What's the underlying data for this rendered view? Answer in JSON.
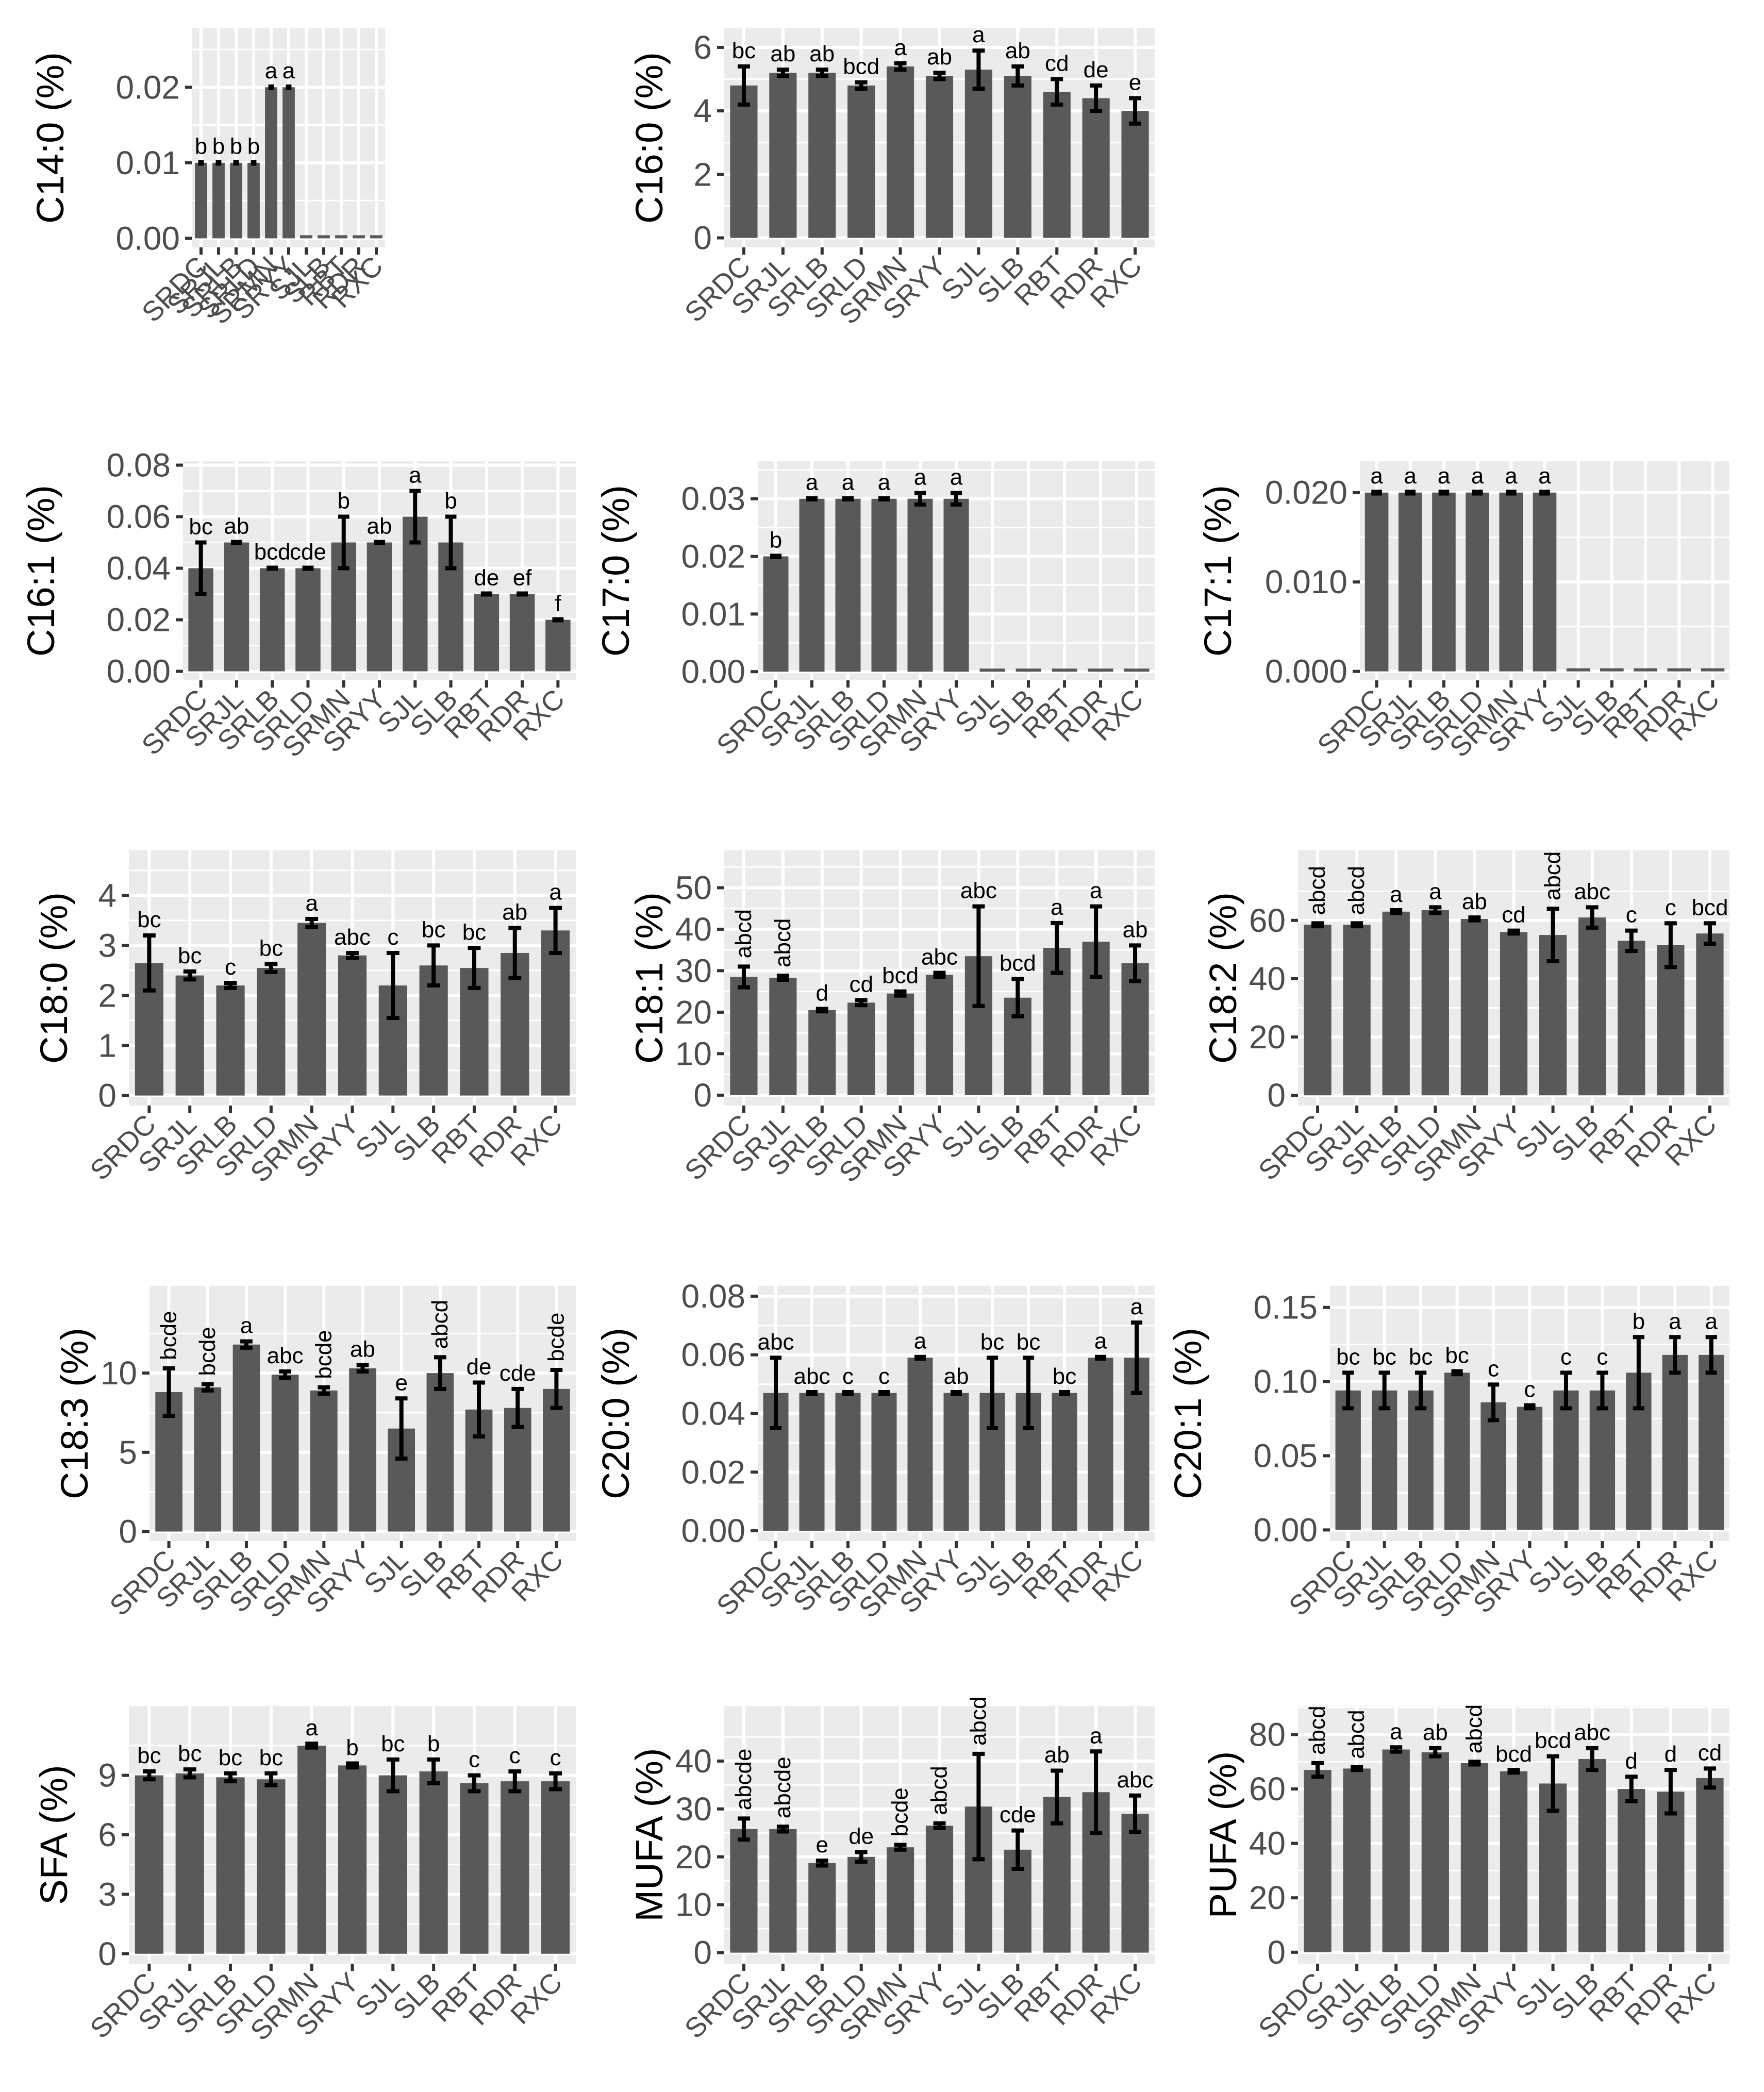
{
  "categories": [
    "SRDC",
    "SRJL",
    "SRLB",
    "SRLD",
    "SRMN",
    "SRYY",
    "SJL",
    "SLB",
    "RBT",
    "RDR",
    "RXC"
  ],
  "colors": {
    "panel_bg": "#EBEBEB",
    "grid": "#FFFFFF",
    "bar": "#595959",
    "error_bar": "#000000",
    "text": "#000000",
    "tick_text": "#4D4D4D"
  },
  "chart_data": [
    {
      "id": "c14_0",
      "type": "bar",
      "ylabel": "C14:0 (%)",
      "ylim": [
        -0.0012,
        0.0278
      ],
      "ticks": [
        0,
        0.01,
        0.02
      ],
      "tick_labels": [
        "0.00",
        "0.01",
        "0.02"
      ],
      "values": [
        0.01,
        0.01,
        0.01,
        0.01,
        0.02,
        0.02,
        0,
        0,
        0,
        0,
        0
      ],
      "errors": [
        0.0001,
        0.0001,
        0.0001,
        0.0001,
        0.0001,
        0.0001,
        0,
        0,
        0,
        0,
        0
      ],
      "letters": [
        "b",
        "b",
        "b",
        "b",
        "a",
        "a",
        "",
        "",
        "",
        "",
        ""
      ]
    },
    {
      "id": "c16_0",
      "type": "bar",
      "ylabel": "C16:0 (%)",
      "ylim": [
        -0.3,
        6.6
      ],
      "ticks": [
        0,
        2,
        4,
        6
      ],
      "tick_labels": [
        "0",
        "2",
        "4",
        "6"
      ],
      "values": [
        4.8,
        5.2,
        5.2,
        4.8,
        5.4,
        5.1,
        5.3,
        5.1,
        4.6,
        4.4,
        4.0
      ],
      "errors": [
        0.6,
        0.1,
        0.1,
        0.1,
        0.1,
        0.1,
        0.6,
        0.3,
        0.4,
        0.4,
        0.4
      ],
      "letters": [
        "bc",
        "ab",
        "ab",
        "bcd",
        "a",
        "ab",
        "a",
        "ab",
        "cd",
        "de",
        "e"
      ]
    },
    {
      "id": "c16_1",
      "type": "bar",
      "ylabel": "C16:1 (%)",
      "ylim": [
        -0.0035,
        0.0815
      ],
      "ticks": [
        0,
        0.02,
        0.04,
        0.06,
        0.08
      ],
      "tick_labels": [
        "0.00",
        "0.02",
        "0.04",
        "0.06",
        "0.08"
      ],
      "values": [
        0.04,
        0.05,
        0.04,
        0.04,
        0.05,
        0.05,
        0.06,
        0.05,
        0.03,
        0.03,
        0.02
      ],
      "errors": [
        0.01,
        0.0002,
        0.0002,
        0.0002,
        0.01,
        0.0002,
        0.01,
        0.01,
        0.0002,
        0.0002,
        0.0002
      ],
      "letters": [
        "bc",
        "ab",
        "bcd",
        "cde",
        "b",
        "ab",
        "a",
        "b",
        "de",
        "ef",
        "f"
      ]
    },
    {
      "id": "c17_0",
      "type": "bar",
      "ylabel": "C17:0 (%)",
      "ylim": [
        -0.0015,
        0.0365
      ],
      "ticks": [
        0,
        0.01,
        0.02,
        0.03
      ],
      "tick_labels": [
        "0.00",
        "0.01",
        "0.02",
        "0.03"
      ],
      "values": [
        0.02,
        0.03,
        0.03,
        0.03,
        0.03,
        0.03,
        0,
        0,
        0,
        0,
        0
      ],
      "errors": [
        0.0001,
        0.0001,
        0.0001,
        0.0001,
        0.001,
        0.001,
        0,
        0,
        0,
        0,
        0
      ],
      "letters": [
        "b",
        "a",
        "a",
        "a",
        "a",
        "a",
        "",
        "",
        "",
        "",
        ""
      ]
    },
    {
      "id": "c17_1",
      "type": "bar",
      "ylabel": "C17:1 (%)",
      "ylim": [
        -0.001,
        0.0235
      ],
      "ticks": [
        0,
        0.01,
        0.02
      ],
      "tick_labels": [
        "0.000",
        "0.010",
        "0.020"
      ],
      "values": [
        0.02,
        0.02,
        0.02,
        0.02,
        0.02,
        0.02,
        0,
        0,
        0,
        0,
        0
      ],
      "errors": [
        0.0001,
        0.0001,
        0.0001,
        0.0001,
        0.0001,
        0.0001,
        0,
        0,
        0,
        0,
        0
      ],
      "letters": [
        "a",
        "a",
        "a",
        "a",
        "a",
        "a",
        "",
        "",
        "",
        "",
        ""
      ]
    },
    {
      "id": "c18_0",
      "type": "bar",
      "ylabel": "C18:0 (%)",
      "ylim": [
        -0.2,
        4.9
      ],
      "ticks": [
        0,
        1,
        2,
        3,
        4
      ],
      "tick_labels": [
        "0",
        "1",
        "2",
        "3",
        "4"
      ],
      "values": [
        2.65,
        2.4,
        2.2,
        2.55,
        3.45,
        2.8,
        2.2,
        2.6,
        2.55,
        2.85,
        3.3
      ],
      "errors": [
        0.55,
        0.08,
        0.05,
        0.08,
        0.08,
        0.05,
        0.65,
        0.4,
        0.4,
        0.5,
        0.45
      ],
      "letters": [
        "bc",
        "bc",
        "c",
        "bc",
        "a",
        "abc",
        "c",
        "bc",
        "bc",
        "ab",
        "a"
      ]
    },
    {
      "id": "c18_1",
      "type": "bar",
      "ylabel": "C18:1 (%)",
      "ylim": [
        -2.5,
        59
      ],
      "ticks": [
        0,
        10,
        20,
        30,
        40,
        50
      ],
      "tick_labels": [
        "0",
        "10",
        "20",
        "30",
        "40",
        "50"
      ],
      "values": [
        28.5,
        28.3,
        20.5,
        22.3,
        24.5,
        29,
        33.5,
        23.5,
        35.5,
        37,
        31.8
      ],
      "errors": [
        2.5,
        0.5,
        0.3,
        0.6,
        0.5,
        0.5,
        12,
        4.5,
        6,
        8.5,
        4.3
      ],
      "letters": [
        "abcd",
        "abcd",
        "d",
        "cd",
        "bcd",
        "abc",
        "abc",
        "bcd",
        "a",
        "a",
        "ab"
      ]
    },
    {
      "id": "c18_2",
      "type": "bar",
      "ylabel": "C18:2 (%)",
      "ylim": [
        -3.5,
        84
      ],
      "ticks": [
        0,
        20,
        40,
        60
      ],
      "tick_labels": [
        "0",
        "20",
        "40",
        "60"
      ],
      "values": [
        58.5,
        58.5,
        63,
        63.5,
        60.5,
        56,
        55,
        61,
        53,
        51.5,
        55.5
      ],
      "errors": [
        0.5,
        0.5,
        0.5,
        1,
        0.5,
        0.5,
        9,
        3.5,
        3.5,
        7.5,
        3.5
      ],
      "letters": [
        "abcd",
        "abcd",
        "a",
        "a",
        "ab",
        "cd",
        "abcd",
        "abc",
        "c",
        "c",
        "bcd"
      ]
    },
    {
      "id": "c18_3",
      "type": "bar",
      "ylabel": "C18:3 (%)",
      "ylim": [
        -0.6,
        15.5
      ],
      "ticks": [
        0,
        5,
        10
      ],
      "tick_labels": [
        "0",
        "5",
        "10"
      ],
      "values": [
        8.8,
        9.1,
        11.8,
        9.9,
        8.9,
        10.3,
        6.5,
        10,
        7.7,
        7.8,
        9.0
      ],
      "errors": [
        1.5,
        0.2,
        0.2,
        0.2,
        0.2,
        0.2,
        1.9,
        1.0,
        1.7,
        1.2,
        1.2
      ],
      "letters": [
        "bcde",
        "bcde",
        "a",
        "abc",
        "bcde",
        "ab",
        "e",
        "abcd",
        "de",
        "cde",
        "bcde"
      ]
    },
    {
      "id": "c20_0",
      "type": "bar",
      "ylabel": "C20:0 (%)",
      "ylim": [
        -0.0035,
        0.0835
      ],
      "ticks": [
        0,
        0.02,
        0.04,
        0.06,
        0.08
      ],
      "tick_labels": [
        "0.00",
        "0.02",
        "0.04",
        "0.06",
        "0.08"
      ],
      "values": [
        0.047,
        0.047,
        0.047,
        0.047,
        0.059,
        0.047,
        0.047,
        0.047,
        0.047,
        0.059,
        0.059
      ],
      "errors": [
        0.012,
        0.0003,
        0.0003,
        0.0003,
        0.0003,
        0.0003,
        0.012,
        0.012,
        0.0003,
        0.0003,
        0.012
      ],
      "letters": [
        "abc",
        "abc",
        "c",
        "c",
        "a",
        "ab",
        "bc",
        "bc",
        "bc",
        "a",
        "a"
      ]
    },
    {
      "id": "c20_1",
      "type": "bar",
      "ylabel": "C20:1 (%)",
      "ylim": [
        -0.0075,
        0.1645
      ],
      "ticks": [
        0,
        0.05,
        0.1,
        0.15
      ],
      "tick_labels": [
        "0.00",
        "0.05",
        "0.10",
        "0.15"
      ],
      "values": [
        0.094,
        0.094,
        0.094,
        0.106,
        0.086,
        0.083,
        0.094,
        0.094,
        0.106,
        0.118,
        0.118
      ],
      "errors": [
        0.012,
        0.012,
        0.012,
        0.001,
        0.012,
        0.001,
        0.012,
        0.012,
        0.024,
        0.012,
        0.012
      ],
      "letters": [
        "bc",
        "bc",
        "bc",
        "bc",
        "c",
        "c",
        "c",
        "c",
        "b",
        "a",
        "a"
      ]
    },
    {
      "id": "sfa",
      "type": "bar",
      "ylabel": "SFA (%)",
      "ylim": [
        -0.5,
        12.5
      ],
      "ticks": [
        0,
        3,
        6,
        9
      ],
      "tick_labels": [
        "0",
        "3",
        "6",
        "9"
      ],
      "values": [
        9.0,
        9.1,
        8.9,
        8.8,
        10.5,
        9.5,
        9.0,
        9.2,
        8.6,
        8.7,
        8.7
      ],
      "errors": [
        0.2,
        0.2,
        0.2,
        0.3,
        0.1,
        0.1,
        0.8,
        0.6,
        0.4,
        0.5,
        0.4
      ],
      "letters": [
        "bc",
        "bc",
        "bc",
        "bc",
        "a",
        "b",
        "bc",
        "b",
        "c",
        "c",
        "c"
      ]
    },
    {
      "id": "mufa",
      "type": "bar",
      "ylabel": "MUFA (%)",
      "ylim": [
        -2.3,
        51.5
      ],
      "ticks": [
        0,
        10,
        20,
        30,
        40
      ],
      "tick_labels": [
        "0",
        "10",
        "20",
        "30",
        "40"
      ],
      "values": [
        25.8,
        25.8,
        18.7,
        20,
        22,
        26.5,
        30.5,
        21.5,
        32.5,
        33.5,
        29
      ],
      "errors": [
        2.2,
        0.5,
        0.5,
        1,
        0.5,
        0.5,
        11,
        4,
        5.5,
        8.5,
        3.8
      ],
      "letters": [
        "abcde",
        "abcde",
        "e",
        "de",
        "bcde",
        "abcd",
        "abcd",
        "cde",
        "ab",
        "a",
        "abc"
      ]
    },
    {
      "id": "pufa",
      "type": "bar",
      "ylabel": "PUFA (%)",
      "ylim": [
        -4.2,
        90.5
      ],
      "ticks": [
        0,
        20,
        40,
        60,
        80
      ],
      "tick_labels": [
        "0",
        "20",
        "40",
        "60",
        "80"
      ],
      "values": [
        67,
        67.5,
        74.5,
        73.5,
        69.5,
        66.5,
        62,
        71,
        60,
        59,
        64
      ],
      "errors": [
        2.5,
        0.5,
        0.8,
        1.5,
        0.5,
        0.5,
        10,
        4,
        4.5,
        8,
        3.5
      ],
      "letters": [
        "abcd",
        "abcd",
        "a",
        "ab",
        "abcd",
        "bcd",
        "bcd",
        "abc",
        "d",
        "d",
        "cd"
      ]
    }
  ]
}
